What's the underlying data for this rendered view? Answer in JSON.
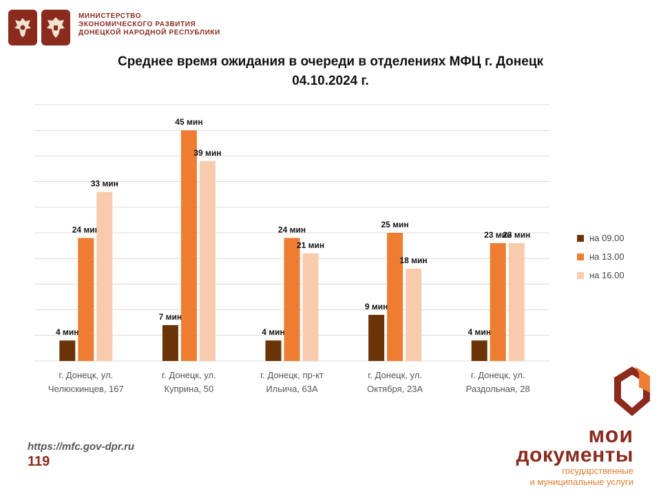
{
  "header": {
    "ministry_line1": "МИНИСТЕРСТВО",
    "ministry_line2": "ЭКОНОМИЧЕСКОГО РАЗВИТИЯ",
    "ministry_line3": "ДОНЕЦКОЙ НАРОДНОЙ РЕСПУБЛИКИ"
  },
  "title_line1": "Среднее время ожидания в очереди в отделениях МФЦ г. Донецк",
  "title_line2": "04.10.2024 г.",
  "chart_data": {
    "type": "bar",
    "title": "Среднее время ожидания в очереди в отделениях МФЦ г. Донецк 04.10.2024 г.",
    "categories": [
      [
        "г. Донецк, ул.",
        "Челюскинцев, 167"
      ],
      [
        "г. Донецк, ул.",
        "Куприна, 50"
      ],
      [
        "г. Донецк, пр-кт",
        "Ильича, 63А"
      ],
      [
        "г. Донецк, ул.",
        "Октября, 23А"
      ],
      [
        "г. Донецк, ул.",
        "Раздольная, 28"
      ]
    ],
    "series": [
      {
        "name": "на 09.00",
        "values": [
          4,
          7,
          4,
          9,
          4
        ],
        "color": "#6b3308"
      },
      {
        "name": "на 13.00",
        "values": [
          24,
          45,
          24,
          25,
          23
        ],
        "color": "#ed7d31"
      },
      {
        "name": "на 16.00",
        "values": [
          33,
          39,
          21,
          18,
          23
        ],
        "color": "#f8cbad"
      }
    ],
    "value_suffix": " мин",
    "ylim": [
      0,
      50
    ],
    "gridlines": true,
    "legend_position": "right"
  },
  "footer": {
    "url": "https://mfc.gov-dpr.ru",
    "page": "119"
  },
  "brand": {
    "line1": "мои",
    "line2": "документы",
    "line3": "государственные",
    "line4": "и муниципальные услуги"
  }
}
